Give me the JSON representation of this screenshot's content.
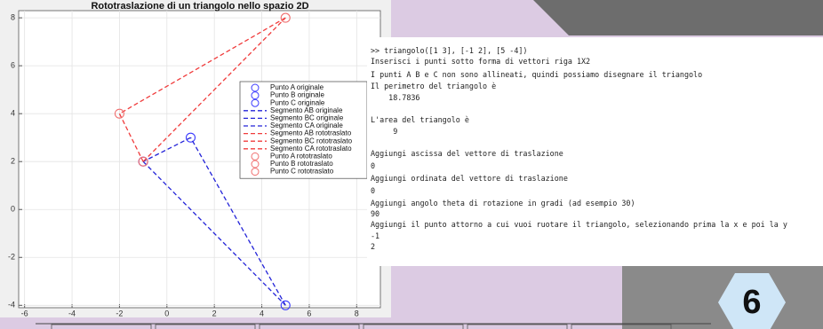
{
  "chart_data": {
    "type": "line",
    "title": "Rototraslazione di un triangolo nello spazio 2D",
    "xlim": [
      -6.25,
      9
    ],
    "xticks": [
      -6,
      -4,
      -2,
      0,
      2,
      4,
      6,
      8
    ],
    "ylim": [
      -4.1,
      8.3
    ],
    "yticks": [
      -4,
      -2,
      0,
      2,
      4,
      6,
      8
    ],
    "grid": true,
    "legend": "right",
    "series": [
      {
        "name": "Punto A originale",
        "color": "#3b3bff",
        "style": "marker",
        "x": [
          1
        ],
        "y": [
          3
        ]
      },
      {
        "name": "Punto B originale",
        "color": "#3b3bff",
        "style": "marker",
        "x": [
          -1
        ],
        "y": [
          2
        ]
      },
      {
        "name": "Punto C originale",
        "color": "#3b3bff",
        "style": "marker",
        "x": [
          5
        ],
        "y": [
          -4
        ]
      },
      {
        "name": "Segmento AB originale",
        "color": "#2323d8",
        "style": "dashed",
        "x": [
          1,
          -1
        ],
        "y": [
          3,
          2
        ]
      },
      {
        "name": "Segmento BC originale",
        "color": "#2323d8",
        "style": "dashed",
        "x": [
          -1,
          5
        ],
        "y": [
          2,
          -4
        ]
      },
      {
        "name": "Segmento CA originale",
        "color": "#2323d8",
        "style": "dashed",
        "x": [
          5,
          1
        ],
        "y": [
          -4,
          3
        ]
      },
      {
        "name": "Segmento AB rototraslato",
        "color": "#f03c3c",
        "style": "dashed",
        "x": [
          -2,
          -1
        ],
        "y": [
          4,
          2
        ]
      },
      {
        "name": "Segmento BC rototraslato",
        "color": "#f03c3c",
        "style": "dashed",
        "x": [
          -1,
          5
        ],
        "y": [
          2,
          8
        ]
      },
      {
        "name": "Segmento CA rototraslato",
        "color": "#f03c3c",
        "style": "dashed",
        "x": [
          5,
          -2
        ],
        "y": [
          8,
          4
        ]
      },
      {
        "name": "Punto A rototraslato",
        "color": "#f07070",
        "style": "marker",
        "x": [
          -2
        ],
        "y": [
          4
        ]
      },
      {
        "name": "Punto B rototraslato",
        "color": "#f07070",
        "style": "marker",
        "x": [
          -1
        ],
        "y": [
          2
        ]
      },
      {
        "name": "Punto C rototraslato",
        "color": "#f07070",
        "style": "marker",
        "x": [
          5
        ],
        "y": [
          8
        ]
      }
    ]
  },
  "console": {
    "lines": [
      ">> triangolo([1 3], [-1 2], [5 -4])",
      "Inserisci i punti sotto forma di vettori riga 1X2",
      "I punti A B e C non sono allineati, quindi possiamo disegnare il triangolo",
      "Il perimetro del triangolo è",
      "    18.7836",
      "L'area del triangolo è",
      "     9",
      "Aggiungi ascissa del vettore di traslazione",
      "0",
      "Aggiungi ordinata del vettore di traslazione",
      "0",
      "Aggiungi angolo theta di rotazione in gradi (ad esempio 30)",
      "90",
      "Aggiungi il punto attorno a cui vuoi ruotare il triangolo, selezionando prima la x e poi la y",
      "-1",
      "2"
    ]
  },
  "badge": "6"
}
